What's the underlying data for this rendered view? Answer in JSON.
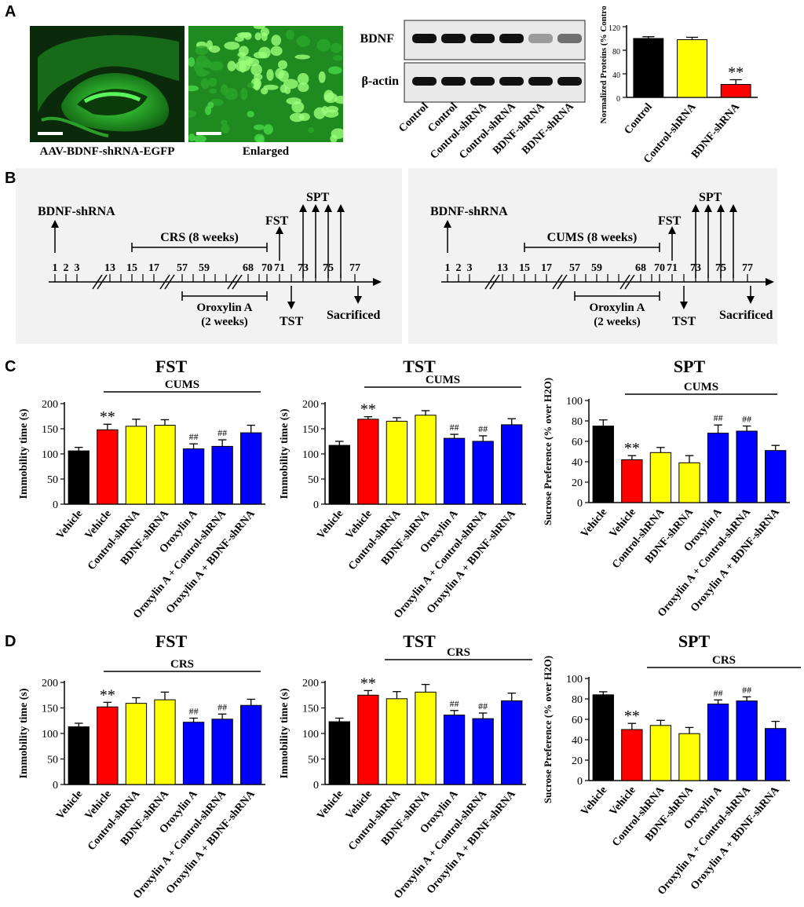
{
  "panels": {
    "a": "A",
    "b": "B",
    "c": "C",
    "d": "D"
  },
  "colors": {
    "black": "#000000",
    "red": "#ff0000",
    "yellow": "#ffff00",
    "blue": "#0000ff",
    "egfp_green": "#22c322",
    "timeline_bg": "#f2f2f2"
  },
  "panel_a": {
    "micrographs": [
      {
        "caption": "AAV-BDNF-shRNA-EGFP",
        "scale_bar": true
      },
      {
        "caption": "Enlarged",
        "scale_bar": true
      }
    ],
    "blot": {
      "bands": [
        "BDNF",
        "β-actin"
      ],
      "lanes": [
        "Control",
        "Control",
        "Control-shRNA",
        "Control-shRNA",
        "BDNF-shRNA",
        "BDNF-shRNA"
      ],
      "bdnf_band_intensity": [
        1.0,
        1.0,
        1.0,
        1.0,
        0.25,
        0.5
      ],
      "actin_band_intensity": [
        1.0,
        1.0,
        1.0,
        1.0,
        1.0,
        1.0
      ]
    }
  },
  "panel_b": {
    "timelines": [
      {
        "injection": "BDNF-shRNA",
        "stress": "CRS (8 weeks)",
        "treatment": [
          "Oroxylin A",
          "(2 weeks)"
        ],
        "tests_up": [
          "FST",
          "SPT"
        ],
        "tests_down": [
          "TST",
          "Sacrificed"
        ],
        "days": [
          "1",
          "2",
          "3",
          "13",
          "15",
          "17",
          "57",
          "59",
          "68",
          "70",
          "71",
          "73",
          "75",
          "77"
        ]
      },
      {
        "injection": "BDNF-shRNA",
        "stress": "CUMS (8 weeks)",
        "treatment": [
          "Oroxylin A",
          "(2 weeks)"
        ],
        "tests_up": [
          "FST",
          "SPT"
        ],
        "tests_down": [
          "TST",
          "Sacrificed"
        ],
        "days": [
          "1",
          "2",
          "3",
          "13",
          "15",
          "17",
          "57",
          "59",
          "68",
          "70",
          "71",
          "73",
          "75",
          "77"
        ]
      }
    ]
  },
  "chart_data": [
    {
      "type": "bar",
      "id": "a_quant",
      "categories": [
        "Control",
        "Control-shRNA",
        "BDNF-shRNA"
      ],
      "values": [
        100,
        98,
        22
      ],
      "errors": [
        3,
        4,
        8
      ],
      "colors": [
        "#000000",
        "#ffff00",
        "#ff0000"
      ],
      "annotations": [
        "",
        "",
        "**"
      ],
      "ylabel": "Normalized Proteins (% Control)",
      "ylim": [
        0,
        120
      ],
      "yticks": [
        0,
        40,
        80,
        120
      ]
    },
    {
      "type": "bar",
      "id": "c_fst",
      "title": "FST",
      "group_label": "CUMS",
      "categories": [
        "Vehicle",
        "Vehicle",
        "Control-shRNA",
        "BDNF-shRNA",
        "Oroxylin A",
        "Oroxylin A + Control-shRNA",
        "Oroxylin A + BDNF-shRNA"
      ],
      "values": [
        106,
        148,
        155,
        157,
        110,
        115,
        142
      ],
      "errors": [
        7,
        11,
        14,
        11,
        10,
        13,
        15
      ],
      "colors": [
        "#000000",
        "#ff0000",
        "#ffff00",
        "#ffff00",
        "#0000ff",
        "#0000ff",
        "#0000ff"
      ],
      "annotations": [
        "",
        "**",
        "",
        "",
        "##",
        "##",
        ""
      ],
      "ylabel": "Immobility time (s)",
      "ylim": [
        0,
        200
      ],
      "yticks": [
        0,
        50,
        100,
        150,
        200
      ]
    },
    {
      "type": "bar",
      "id": "c_tst",
      "title": "TST",
      "group_label": "CUMS",
      "categories": [
        "Vehicle",
        "Vehicle",
        "Control-shRNA",
        "BDNF-shRNA",
        "Oroxylin A",
        "Oroxylin A + Control-shRNA",
        "Oroxylin A + BDNF-shRNA"
      ],
      "values": [
        117,
        169,
        165,
        177,
        131,
        125,
        158
      ],
      "errors": [
        8,
        5,
        7,
        9,
        8,
        11,
        12
      ],
      "colors": [
        "#000000",
        "#ff0000",
        "#ffff00",
        "#ffff00",
        "#0000ff",
        "#0000ff",
        "#0000ff"
      ],
      "annotations": [
        "",
        "**",
        "",
        "",
        "##",
        "##",
        ""
      ],
      "ylabel": "Immobility time (s)",
      "ylim": [
        0,
        200
      ],
      "yticks": [
        0,
        50,
        100,
        150,
        200
      ]
    },
    {
      "type": "bar",
      "id": "c_spt",
      "title": "SPT",
      "group_label": "CUMS",
      "categories": [
        "Vehicle",
        "Vehicle",
        "Control-shRNA",
        "BDNF-shRNA",
        "Oroxylin A",
        "Oroxylin A + Control-shRNA",
        "Oroxylin A + BDNF-shRNA"
      ],
      "values": [
        75,
        42,
        49,
        39,
        68,
        70,
        51
      ],
      "errors": [
        6,
        4,
        5,
        7,
        8,
        5,
        5
      ],
      "colors": [
        "#000000",
        "#ff0000",
        "#ffff00",
        "#ffff00",
        "#0000ff",
        "#0000ff",
        "#0000ff"
      ],
      "annotations": [
        "",
        "**",
        "",
        "",
        "##",
        "##",
        ""
      ],
      "ylabel": "Sucrose Preference (% over H2O)",
      "ylim": [
        0,
        100
      ],
      "yticks": [
        0,
        20,
        40,
        60,
        80,
        100
      ]
    },
    {
      "type": "bar",
      "id": "d_fst",
      "title": "FST",
      "group_label": "CRS",
      "categories": [
        "Vehicle",
        "Vehicle",
        "Control-shRNA",
        "BDNF-shRNA",
        "Oroxylin A",
        "Oroxylin A + Control-shRNA",
        "Oroxylin A + BDNF-shRNA"
      ],
      "values": [
        113,
        152,
        159,
        166,
        122,
        128,
        155
      ],
      "errors": [
        7,
        9,
        11,
        15,
        8,
        10,
        12
      ],
      "colors": [
        "#000000",
        "#ff0000",
        "#ffff00",
        "#ffff00",
        "#0000ff",
        "#0000ff",
        "#0000ff"
      ],
      "annotations": [
        "",
        "**",
        "",
        "",
        "##",
        "##",
        ""
      ],
      "ylabel": "Immobility time (s)",
      "ylim": [
        0,
        200
      ],
      "yticks": [
        0,
        50,
        100,
        150,
        200
      ]
    },
    {
      "type": "bar",
      "id": "d_tst",
      "title": "TST",
      "group_label": "CRS",
      "categories": [
        "Vehicle",
        "Vehicle",
        "Control-shRNA",
        "BDNF-shRNA",
        "Oroxylin A",
        "Oroxylin A + Control-shRNA",
        "Oroxylin A + BDNF-shRNA"
      ],
      "values": [
        123,
        175,
        168,
        181,
        136,
        129,
        164
      ],
      "errors": [
        7,
        9,
        14,
        15,
        9,
        11,
        15
      ],
      "colors": [
        "#000000",
        "#ff0000",
        "#ffff00",
        "#ffff00",
        "#0000ff",
        "#0000ff",
        "#0000ff"
      ],
      "annotations": [
        "",
        "**",
        "",
        "",
        "##",
        "##",
        ""
      ],
      "ylabel": "Immobility time (s)",
      "ylim": [
        0,
        200
      ],
      "yticks": [
        0,
        50,
        100,
        150,
        200
      ]
    },
    {
      "type": "bar",
      "id": "d_spt",
      "title": "SPT",
      "group_label": "CRS",
      "categories": [
        "Vehicle",
        "Vehicle",
        "Control-shRNA",
        "BDNF-shRNA",
        "Oroxylin A",
        "Oroxylin A + Control-shRNA",
        "Oroxylin A + BDNF-shRNA"
      ],
      "values": [
        84,
        50,
        54,
        46,
        75,
        78,
        51
      ],
      "errors": [
        3,
        6,
        5,
        6,
        4,
        4,
        7
      ],
      "colors": [
        "#000000",
        "#ff0000",
        "#ffff00",
        "#ffff00",
        "#0000ff",
        "#0000ff",
        "#0000ff"
      ],
      "annotations": [
        "",
        "**",
        "",
        "",
        "##",
        "##",
        ""
      ],
      "ylabel": "Sucrose Preference (% over H2O)",
      "ylim": [
        0,
        100
      ],
      "yticks": [
        0,
        20,
        40,
        60,
        80,
        100
      ]
    }
  ]
}
